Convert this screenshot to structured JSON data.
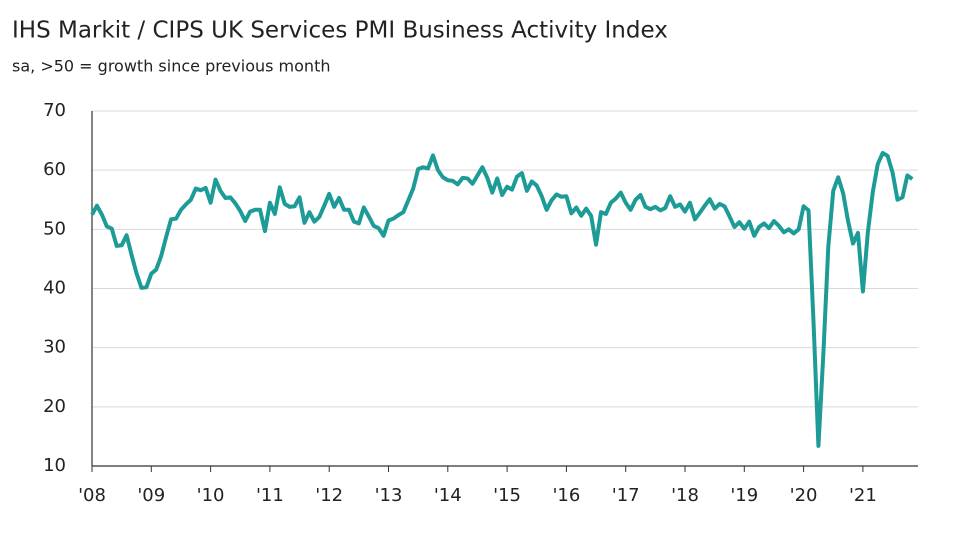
{
  "chart_data": {
    "type": "line",
    "title": "IHS Markit / CIPS UK Services PMI Business Activity Index",
    "subtitle": "sa, >50 = growth since previous month",
    "categories": [
      "'08",
      null,
      null,
      null,
      null,
      null,
      null,
      null,
      null,
      null,
      null,
      null,
      "'09",
      null,
      null,
      null,
      null,
      null,
      null,
      null,
      null,
      null,
      null,
      null,
      "'10",
      null,
      null,
      null,
      null,
      null,
      null,
      null,
      null,
      null,
      null,
      null,
      "'11",
      null,
      null,
      null,
      null,
      null,
      null,
      null,
      null,
      null,
      null,
      null,
      "'12",
      null,
      null,
      null,
      null,
      null,
      null,
      null,
      null,
      null,
      null,
      null,
      "'13",
      null,
      null,
      null,
      null,
      null,
      null,
      null,
      null,
      null,
      null,
      null,
      "'14",
      null,
      null,
      null,
      null,
      null,
      null,
      null,
      null,
      null,
      null,
      null,
      "'15",
      null,
      null,
      null,
      null,
      null,
      null,
      null,
      null,
      null,
      null,
      null,
      "'16",
      null,
      null,
      null,
      null,
      null,
      null,
      null,
      null,
      null,
      null,
      null,
      "'17",
      null,
      null,
      null,
      null,
      null,
      null,
      null,
      null,
      null,
      null,
      null,
      "'18",
      null,
      null,
      null,
      null,
      null,
      null,
      null,
      null,
      null,
      null,
      null,
      "'19",
      null,
      null,
      null,
      null,
      null,
      null,
      null,
      null,
      null,
      null,
      null,
      "'20",
      null,
      null,
      null,
      null,
      null,
      null,
      null,
      null,
      null,
      null,
      null,
      "'21",
      null,
      null,
      null,
      null,
      null,
      null,
      null,
      null,
      null,
      null
    ],
    "series": [
      {
        "name": "Services PMI",
        "color": "#1d9b97",
        "values": [
          52.5,
          54.0,
          52.5,
          50.5,
          50.1,
          47.2,
          47.3,
          49.0,
          45.7,
          42.6,
          40.1,
          40.2,
          42.5,
          43.2,
          45.5,
          48.7,
          51.7,
          51.8,
          53.3,
          54.2,
          55.0,
          56.9,
          56.6,
          57.0,
          54.5,
          58.4,
          56.5,
          55.3,
          55.4,
          54.4,
          53.1,
          51.4,
          53.0,
          53.3,
          53.3,
          49.7,
          54.5,
          52.6,
          57.1,
          54.3,
          53.8,
          53.9,
          55.4,
          51.1,
          52.9,
          51.3,
          52.1,
          54.0,
          56.0,
          53.8,
          55.3,
          53.3,
          53.3,
          51.3,
          51.0,
          53.7,
          52.2,
          50.6,
          50.2,
          48.9,
          51.5,
          51.8,
          52.4,
          52.9,
          54.9,
          56.9,
          60.2,
          60.5,
          60.3,
          62.5,
          60.0,
          58.8,
          58.3,
          58.2,
          57.6,
          58.7,
          58.6,
          57.7,
          59.1,
          60.5,
          58.7,
          56.2,
          58.6,
          55.8,
          57.2,
          56.7,
          58.9,
          59.5,
          56.5,
          58.1,
          57.4,
          55.6,
          53.3,
          54.9,
          55.9,
          55.5,
          55.6,
          52.7,
          53.7,
          52.3,
          53.5,
          52.3,
          47.4,
          52.9,
          52.6,
          54.5,
          55.2,
          56.2,
          54.5,
          53.3,
          55.0,
          55.8,
          53.8,
          53.4,
          53.8,
          53.2,
          53.6,
          55.6,
          53.8,
          54.2,
          53.0,
          54.5,
          51.7,
          52.8,
          54.0,
          55.1,
          53.5,
          54.3,
          53.9,
          52.2,
          50.4,
          51.2,
          50.1,
          51.3,
          48.9,
          50.4,
          51.0,
          50.2,
          51.4,
          50.6,
          49.5,
          50.0,
          49.3,
          50.0,
          53.9,
          53.2,
          34.5,
          13.4,
          29.0,
          47.1,
          56.5,
          58.8,
          56.1,
          51.4,
          47.6,
          49.4,
          39.5,
          49.5,
          56.3,
          61.0,
          62.9,
          62.4,
          59.6,
          55.0,
          55.4,
          59.1,
          58.5
        ]
      }
    ],
    "ylim": [
      10,
      70
    ],
    "yticks": [
      10,
      20,
      30,
      40,
      50,
      60,
      70
    ],
    "grid": true
  }
}
